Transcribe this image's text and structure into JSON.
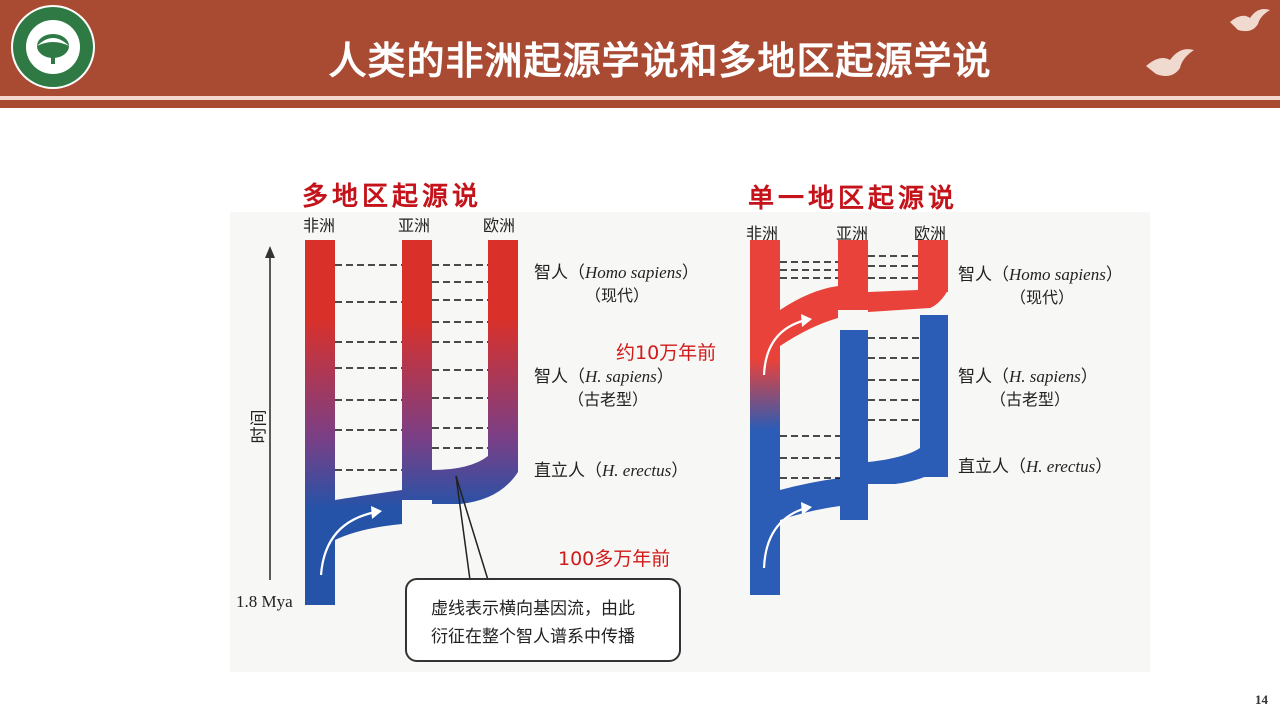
{
  "header": {
    "title": "人类的非洲起源学说和多地区起源学说",
    "logo": {
      "icon": "university-emblem-icon",
      "text_top": "北京理工大学",
      "text_bottom": "BEIJING INSTITUTE OF TECHNOLOGY",
      "year": "1940"
    },
    "decoration": "dove-icon",
    "colors": {
      "bar": "#a94a33",
      "title": "#ffffff"
    }
  },
  "slide_number": "14",
  "left_diagram": {
    "heading": "多地区起源说",
    "regions": [
      "非洲",
      "亚洲",
      "欧洲"
    ],
    "time_axis_label": "时间",
    "time_start": "1.8 Mya",
    "annotation": "100多万年前",
    "callout": {
      "line1": "虚线表示横向基因流，由此",
      "line2": "衍征在整个智人谱系中传播"
    }
  },
  "right_diagram": {
    "heading": "单一地区起源说",
    "regions": [
      "非洲",
      "亚洲",
      "欧洲"
    ],
    "annotation": "约10万年前"
  },
  "labels": {
    "modern": {
      "cn": "智人（",
      "latin": "Homo sapiens",
      "close": "）",
      "sub": "（现代）"
    },
    "archaic": {
      "cn": "智人（",
      "latin": "H. sapiens",
      "close": "）",
      "sub": "（古老型）"
    },
    "erectus": {
      "cn": "直立人（",
      "latin": "H. erectus",
      "close": "）"
    }
  },
  "colors": {
    "red": "#d9312a",
    "blue": "#2453a8",
    "heading": "#c4131a",
    "note": "#d11a1a"
  }
}
